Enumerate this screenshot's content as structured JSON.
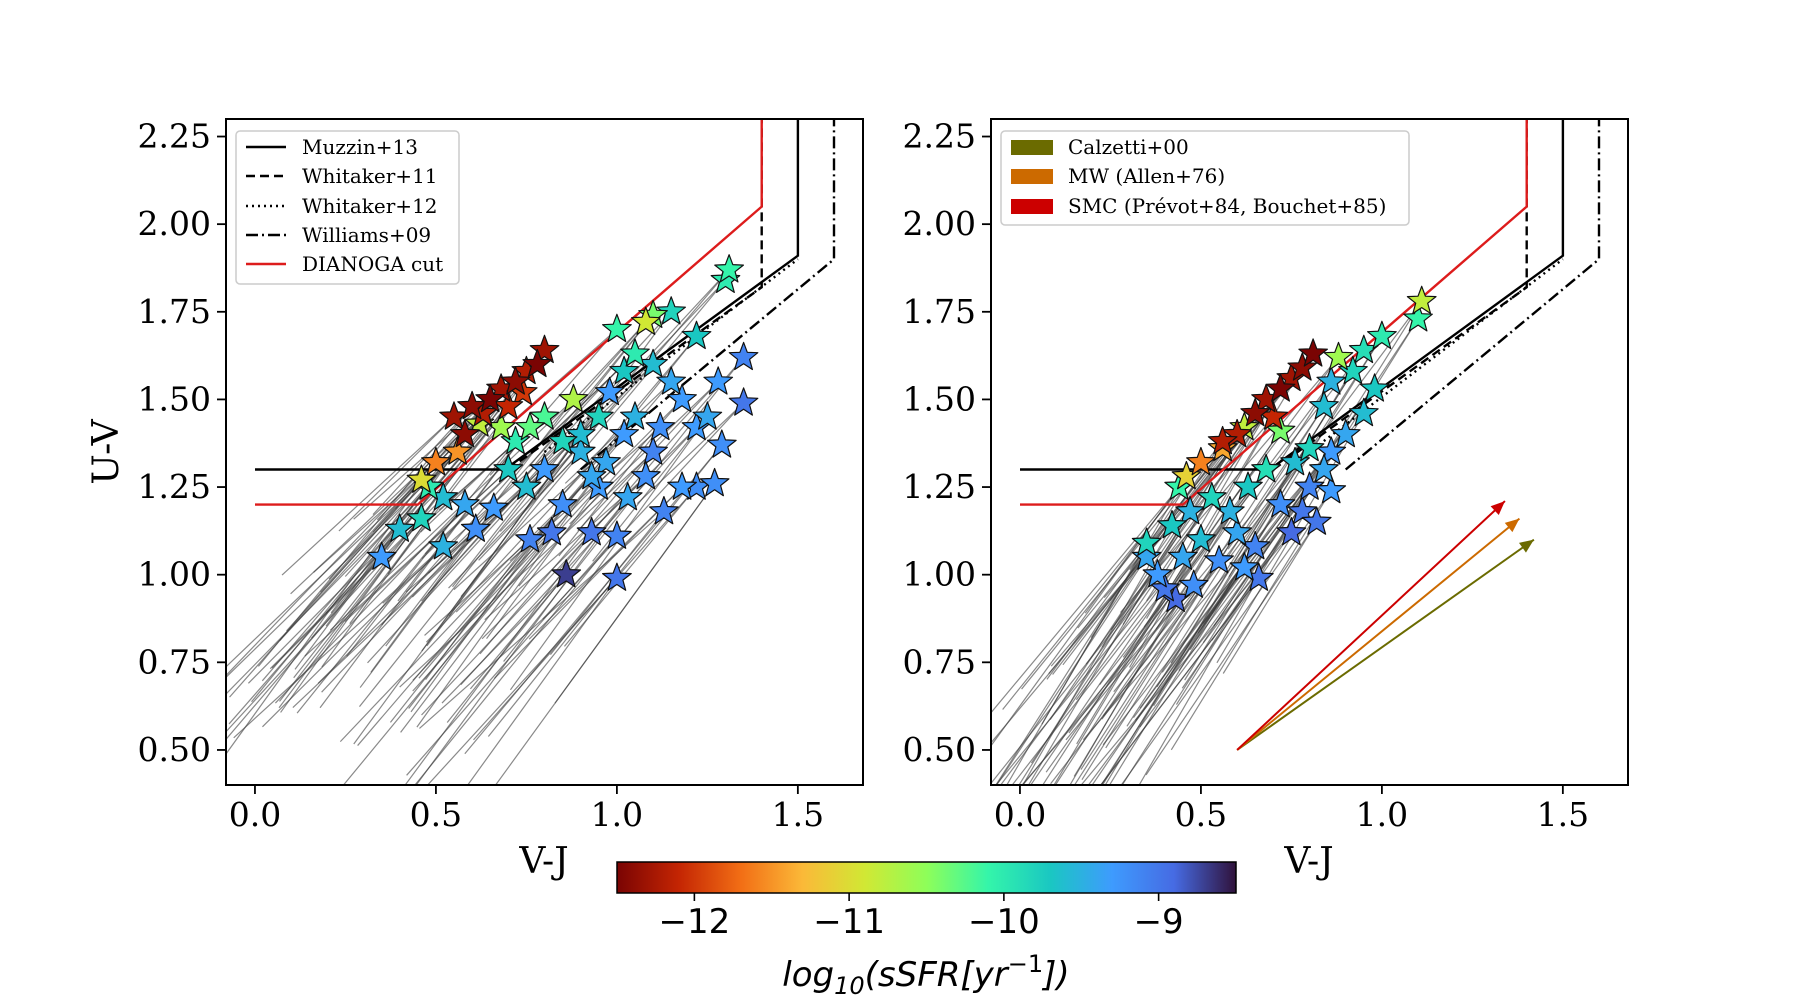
{
  "chart_data": [
    {
      "type": "scatter",
      "panel": "left",
      "xlabel": "V-J",
      "ylabel": "U-V",
      "xlim": [
        -0.08,
        1.68
      ],
      "ylim": [
        0.4,
        2.3
      ],
      "xticks": [
        "0.0",
        "0.5",
        "1.0",
        "1.5"
      ],
      "yticks": [
        "0.50",
        "0.75",
        "1.00",
        "1.25",
        "1.50",
        "1.75",
        "2.00",
        "2.25"
      ],
      "legend_position": "top-left",
      "legend": [
        {
          "label": "Muzzin+13",
          "style": "solid",
          "color": "#000000"
        },
        {
          "label": "Whitaker+11",
          "style": "dashed",
          "color": "#000000"
        },
        {
          "label": "Whitaker+12",
          "style": "dotted",
          "color": "#000000"
        },
        {
          "label": "Williams+09",
          "style": "dashdot",
          "color": "#000000"
        },
        {
          "label": "DIANOGA cut",
          "style": "solid",
          "color": "#dd1c1c"
        }
      ],
      "selection_lines": [
        {
          "name": "muzzin",
          "style": "solid",
          "color": "#000000",
          "x": [
            0.0,
            0.69,
            1.5,
            1.5
          ],
          "y": [
            1.3,
            1.3,
            1.91,
            2.35
          ]
        },
        {
          "name": "whitaker11",
          "style": "dashed",
          "color": "#000000",
          "x": [
            0.7,
            1.4,
            1.4
          ],
          "y": [
            1.3,
            1.82,
            2.35
          ]
        },
        {
          "name": "whitaker12",
          "style": "dotted",
          "color": "#000000",
          "x": [
            0.8,
            1.5
          ],
          "y": [
            1.35,
            1.9
          ]
        },
        {
          "name": "williams",
          "style": "dashdot",
          "color": "#000000",
          "x": [
            0.9,
            1.6,
            1.6
          ],
          "y": [
            1.3,
            1.9,
            2.35
          ]
        },
        {
          "name": "dianoga",
          "style": "solid",
          "color": "#dd1c1c",
          "x": [
            0.0,
            0.45,
            1.4,
            1.4
          ],
          "y": [
            1.2,
            1.2,
            2.05,
            2.35
          ]
        }
      ],
      "stars": [
        {
          "x": 0.35,
          "y": 1.05,
          "ssfr": -9.3
        },
        {
          "x": 0.4,
          "y": 1.13,
          "ssfr": -9.6
        },
        {
          "x": 0.46,
          "y": 1.16,
          "ssfr": -9.8
        },
        {
          "x": 0.52,
          "y": 1.08,
          "ssfr": -9.5
        },
        {
          "x": 0.46,
          "y": 1.27,
          "ssfr": -11.0
        },
        {
          "x": 0.5,
          "y": 1.32,
          "ssfr": -11.6
        },
        {
          "x": 0.56,
          "y": 1.35,
          "ssfr": -11.5
        },
        {
          "x": 0.48,
          "y": 1.25,
          "ssfr": -10.0
        },
        {
          "x": 0.52,
          "y": 1.22,
          "ssfr": -9.6
        },
        {
          "x": 0.58,
          "y": 1.2,
          "ssfr": -9.4
        },
        {
          "x": 0.61,
          "y": 1.13,
          "ssfr": -9.2
        },
        {
          "x": 0.66,
          "y": 1.19,
          "ssfr": -9.3
        },
        {
          "x": 0.62,
          "y": 1.43,
          "ssfr": -10.8
        },
        {
          "x": 0.55,
          "y": 1.45,
          "ssfr": -12.3
        },
        {
          "x": 0.6,
          "y": 1.48,
          "ssfr": -12.4
        },
        {
          "x": 0.65,
          "y": 1.5,
          "ssfr": -12.5
        },
        {
          "x": 0.68,
          "y": 1.53,
          "ssfr": -12.3
        },
        {
          "x": 0.72,
          "y": 1.55,
          "ssfr": -12.4
        },
        {
          "x": 0.75,
          "y": 1.58,
          "ssfr": -12.2
        },
        {
          "x": 0.78,
          "y": 1.6,
          "ssfr": -12.5
        },
        {
          "x": 0.8,
          "y": 1.64,
          "ssfr": -12.3
        },
        {
          "x": 0.7,
          "y": 1.48,
          "ssfr": -12.1
        },
        {
          "x": 0.58,
          "y": 1.4,
          "ssfr": -12.4
        },
        {
          "x": 0.63,
          "y": 1.46,
          "ssfr": -12.2
        },
        {
          "x": 0.74,
          "y": 1.52,
          "ssfr": -12.0
        },
        {
          "x": 0.68,
          "y": 1.42,
          "ssfr": -10.6
        },
        {
          "x": 0.72,
          "y": 1.38,
          "ssfr": -10.0
        },
        {
          "x": 0.76,
          "y": 1.42,
          "ssfr": -10.3
        },
        {
          "x": 0.8,
          "y": 1.45,
          "ssfr": -10.2
        },
        {
          "x": 0.88,
          "y": 1.5,
          "ssfr": -10.7
        },
        {
          "x": 0.85,
          "y": 1.38,
          "ssfr": -9.8
        },
        {
          "x": 0.9,
          "y": 1.35,
          "ssfr": -9.5
        },
        {
          "x": 0.75,
          "y": 1.25,
          "ssfr": -9.6
        },
        {
          "x": 0.7,
          "y": 1.3,
          "ssfr": -9.7
        },
        {
          "x": 0.8,
          "y": 1.3,
          "ssfr": -9.3
        },
        {
          "x": 0.85,
          "y": 1.2,
          "ssfr": -9.2
        },
        {
          "x": 0.82,
          "y": 1.12,
          "ssfr": -9.0
        },
        {
          "x": 0.76,
          "y": 1.1,
          "ssfr": -9.1
        },
        {
          "x": 0.86,
          "y": 1.0,
          "ssfr": -8.7
        },
        {
          "x": 0.93,
          "y": 1.12,
          "ssfr": -9.0
        },
        {
          "x": 0.95,
          "y": 1.25,
          "ssfr": -9.3
        },
        {
          "x": 1.0,
          "y": 1.11,
          "ssfr": -9.1
        },
        {
          "x": 1.0,
          "y": 0.99,
          "ssfr": -9.0
        },
        {
          "x": 1.03,
          "y": 1.22,
          "ssfr": -9.4
        },
        {
          "x": 0.97,
          "y": 1.32,
          "ssfr": -9.4
        },
        {
          "x": 1.02,
          "y": 1.4,
          "ssfr": -9.3
        },
        {
          "x": 1.05,
          "y": 1.45,
          "ssfr": -9.5
        },
        {
          "x": 0.98,
          "y": 1.52,
          "ssfr": -9.3
        },
        {
          "x": 1.02,
          "y": 1.58,
          "ssfr": -9.7
        },
        {
          "x": 1.05,
          "y": 1.63,
          "ssfr": -10.0
        },
        {
          "x": 1.0,
          "y": 1.7,
          "ssfr": -10.1
        },
        {
          "x": 1.08,
          "y": 1.72,
          "ssfr": -10.9
        },
        {
          "x": 1.1,
          "y": 1.74,
          "ssfr": -10.4
        },
        {
          "x": 1.15,
          "y": 1.75,
          "ssfr": -9.8
        },
        {
          "x": 1.1,
          "y": 1.6,
          "ssfr": -9.6
        },
        {
          "x": 1.15,
          "y": 1.55,
          "ssfr": -9.4
        },
        {
          "x": 1.18,
          "y": 1.5,
          "ssfr": -9.3
        },
        {
          "x": 1.12,
          "y": 1.42,
          "ssfr": -9.2
        },
        {
          "x": 1.1,
          "y": 1.35,
          "ssfr": -9.1
        },
        {
          "x": 1.08,
          "y": 1.28,
          "ssfr": -9.2
        },
        {
          "x": 1.13,
          "y": 1.18,
          "ssfr": -9.1
        },
        {
          "x": 1.18,
          "y": 1.25,
          "ssfr": -9.3
        },
        {
          "x": 1.22,
          "y": 1.25,
          "ssfr": -9.2
        },
        {
          "x": 1.27,
          "y": 1.26,
          "ssfr": -9.2
        },
        {
          "x": 1.22,
          "y": 1.42,
          "ssfr": -9.3
        },
        {
          "x": 1.25,
          "y": 1.45,
          "ssfr": -9.4
        },
        {
          "x": 1.28,
          "y": 1.55,
          "ssfr": -9.3
        },
        {
          "x": 1.29,
          "y": 1.37,
          "ssfr": -9.2
        },
        {
          "x": 1.22,
          "y": 1.68,
          "ssfr": -9.7
        },
        {
          "x": 1.3,
          "y": 1.84,
          "ssfr": -10.0
        },
        {
          "x": 1.31,
          "y": 1.87,
          "ssfr": -10.1
        },
        {
          "x": 1.35,
          "y": 1.62,
          "ssfr": -9.1
        },
        {
          "x": 1.35,
          "y": 1.49,
          "ssfr": -9.0
        },
        {
          "x": 0.9,
          "y": 1.4,
          "ssfr": -9.6
        },
        {
          "x": 0.95,
          "y": 1.45,
          "ssfr": -9.8
        },
        {
          "x": 0.93,
          "y": 1.28,
          "ssfr": -9.4
        }
      ]
    },
    {
      "type": "scatter",
      "panel": "right",
      "xlabel": "V-J",
      "ylabel": "",
      "xlim": [
        -0.08,
        1.68
      ],
      "ylim": [
        0.4,
        2.3
      ],
      "xticks": [
        "0.0",
        "0.5",
        "1.0",
        "1.5"
      ],
      "yticks": [
        "0.50",
        "0.75",
        "1.00",
        "1.25",
        "1.50",
        "1.75",
        "2.00",
        "2.25"
      ],
      "legend_position": "top-left",
      "legend": [
        {
          "label": "Calzetti+00",
          "color": "#6b6b00"
        },
        {
          "label": "MW (Allen+76)",
          "color": "#cc6a00"
        },
        {
          "label": "SMC (Prévot+84, Bouchet+85)",
          "color": "#cc0000"
        }
      ],
      "reddening_vectors": [
        {
          "name": "calzetti",
          "color": "#6b6b00",
          "x": [
            0.6,
            1.42
          ],
          "y": [
            0.5,
            1.1
          ]
        },
        {
          "name": "mw",
          "color": "#cc6a00",
          "x": [
            0.6,
            1.38
          ],
          "y": [
            0.5,
            1.16
          ]
        },
        {
          "name": "smc",
          "color": "#cc0000",
          "x": [
            0.6,
            1.34
          ],
          "y": [
            0.5,
            1.21
          ]
        }
      ],
      "selection_lines": [
        {
          "name": "muzzin",
          "style": "solid",
          "color": "#000000",
          "x": [
            0.0,
            0.69,
            1.5,
            1.5
          ],
          "y": [
            1.3,
            1.3,
            1.91,
            2.35
          ]
        },
        {
          "name": "whitaker11",
          "style": "dashed",
          "color": "#000000",
          "x": [
            0.7,
            1.4,
            1.4
          ],
          "y": [
            1.3,
            1.82,
            2.35
          ]
        },
        {
          "name": "whitaker12",
          "style": "dotted",
          "color": "#000000",
          "x": [
            0.8,
            1.5
          ],
          "y": [
            1.35,
            1.9
          ]
        },
        {
          "name": "williams",
          "style": "dashdot",
          "color": "#000000",
          "x": [
            0.9,
            1.6,
            1.6
          ],
          "y": [
            1.3,
            1.9,
            2.35
          ]
        },
        {
          "name": "dianoga",
          "style": "solid",
          "color": "#dd1c1c",
          "x": [
            0.0,
            0.45,
            1.4,
            1.4
          ],
          "y": [
            1.2,
            1.2,
            2.05,
            2.35
          ]
        }
      ],
      "stars": [
        {
          "x": 0.35,
          "y": 1.09,
          "ssfr": -9.8
        },
        {
          "x": 0.35,
          "y": 1.05,
          "ssfr": -9.4
        },
        {
          "x": 0.38,
          "y": 1.0,
          "ssfr": -9.3
        },
        {
          "x": 0.4,
          "y": 0.96,
          "ssfr": -9.0
        },
        {
          "x": 0.43,
          "y": 0.93,
          "ssfr": -8.9
        },
        {
          "x": 0.48,
          "y": 0.97,
          "ssfr": -9.2
        },
        {
          "x": 0.45,
          "y": 1.05,
          "ssfr": -9.4
        },
        {
          "x": 0.5,
          "y": 1.1,
          "ssfr": -9.6
        },
        {
          "x": 0.42,
          "y": 1.14,
          "ssfr": -9.7
        },
        {
          "x": 0.47,
          "y": 1.18,
          "ssfr": -9.5
        },
        {
          "x": 0.44,
          "y": 1.25,
          "ssfr": -10.1
        },
        {
          "x": 0.46,
          "y": 1.28,
          "ssfr": -11.1
        },
        {
          "x": 0.5,
          "y": 1.32,
          "ssfr": -11.6
        },
        {
          "x": 0.56,
          "y": 1.36,
          "ssfr": -11.4
        },
        {
          "x": 0.53,
          "y": 1.22,
          "ssfr": -9.8
        },
        {
          "x": 0.58,
          "y": 1.18,
          "ssfr": -9.5
        },
        {
          "x": 0.55,
          "y": 1.04,
          "ssfr": -9.2
        },
        {
          "x": 0.62,
          "y": 1.02,
          "ssfr": -9.3
        },
        {
          "x": 0.65,
          "y": 1.08,
          "ssfr": -9.1
        },
        {
          "x": 0.6,
          "y": 1.12,
          "ssfr": -9.4
        },
        {
          "x": 0.66,
          "y": 0.99,
          "ssfr": -9.0
        },
        {
          "x": 0.63,
          "y": 1.25,
          "ssfr": -9.7
        },
        {
          "x": 0.68,
          "y": 1.3,
          "ssfr": -9.9
        },
        {
          "x": 0.72,
          "y": 1.2,
          "ssfr": -9.2
        },
        {
          "x": 0.75,
          "y": 1.12,
          "ssfr": -8.9
        },
        {
          "x": 0.78,
          "y": 1.18,
          "ssfr": -9.0
        },
        {
          "x": 0.8,
          "y": 1.25,
          "ssfr": -9.1
        },
        {
          "x": 0.82,
          "y": 1.15,
          "ssfr": -9.0
        },
        {
          "x": 0.76,
          "y": 1.32,
          "ssfr": -9.6
        },
        {
          "x": 0.8,
          "y": 1.36,
          "ssfr": -9.8
        },
        {
          "x": 0.84,
          "y": 1.3,
          "ssfr": -9.4
        },
        {
          "x": 0.86,
          "y": 1.24,
          "ssfr": -9.3
        },
        {
          "x": 0.62,
          "y": 1.42,
          "ssfr": -10.8
        },
        {
          "x": 0.65,
          "y": 1.46,
          "ssfr": -12.4
        },
        {
          "x": 0.6,
          "y": 1.4,
          "ssfr": -12.2
        },
        {
          "x": 0.68,
          "y": 1.5,
          "ssfr": -12.3
        },
        {
          "x": 0.72,
          "y": 1.53,
          "ssfr": -12.5
        },
        {
          "x": 0.75,
          "y": 1.56,
          "ssfr": -12.3
        },
        {
          "x": 0.78,
          "y": 1.59,
          "ssfr": -12.4
        },
        {
          "x": 0.81,
          "y": 1.63,
          "ssfr": -12.5
        },
        {
          "x": 0.7,
          "y": 1.45,
          "ssfr": -12.1
        },
        {
          "x": 0.56,
          "y": 1.38,
          "ssfr": -12.2
        },
        {
          "x": 0.72,
          "y": 1.41,
          "ssfr": -10.4
        },
        {
          "x": 0.84,
          "y": 1.48,
          "ssfr": -9.6
        },
        {
          "x": 0.86,
          "y": 1.55,
          "ssfr": -9.5
        },
        {
          "x": 0.88,
          "y": 1.62,
          "ssfr": -10.6
        },
        {
          "x": 0.92,
          "y": 1.58,
          "ssfr": -9.8
        },
        {
          "x": 0.95,
          "y": 1.64,
          "ssfr": -9.9
        },
        {
          "x": 0.98,
          "y": 1.53,
          "ssfr": -9.7
        },
        {
          "x": 0.95,
          "y": 1.46,
          "ssfr": -9.6
        },
        {
          "x": 0.9,
          "y": 1.4,
          "ssfr": -9.4
        },
        {
          "x": 0.86,
          "y": 1.35,
          "ssfr": -9.3
        },
        {
          "x": 1.0,
          "y": 1.68,
          "ssfr": -10.0
        },
        {
          "x": 1.11,
          "y": 1.78,
          "ssfr": -10.8
        },
        {
          "x": 1.1,
          "y": 1.73,
          "ssfr": -10.1
        }
      ]
    }
  ],
  "colorbar": {
    "label_prefix": "log",
    "label_sub": "10",
    "label_mid": "(sSFR[yr",
    "label_sup": "−1",
    "label_suffix": "])",
    "range": [
      -12.5,
      -8.5
    ],
    "ticks": [
      {
        "value": -12,
        "label": "−12"
      },
      {
        "value": -11,
        "label": "−11"
      },
      {
        "value": -10,
        "label": "−10"
      },
      {
        "value": -9,
        "label": "−9"
      }
    ],
    "colormap": [
      "#7a0403",
      "#c42503",
      "#f26e15",
      "#fbb938",
      "#d1e834",
      "#8efe59",
      "#34f5aa",
      "#1ac7c2",
      "#3e9bfe",
      "#466be3",
      "#30123b"
    ]
  }
}
